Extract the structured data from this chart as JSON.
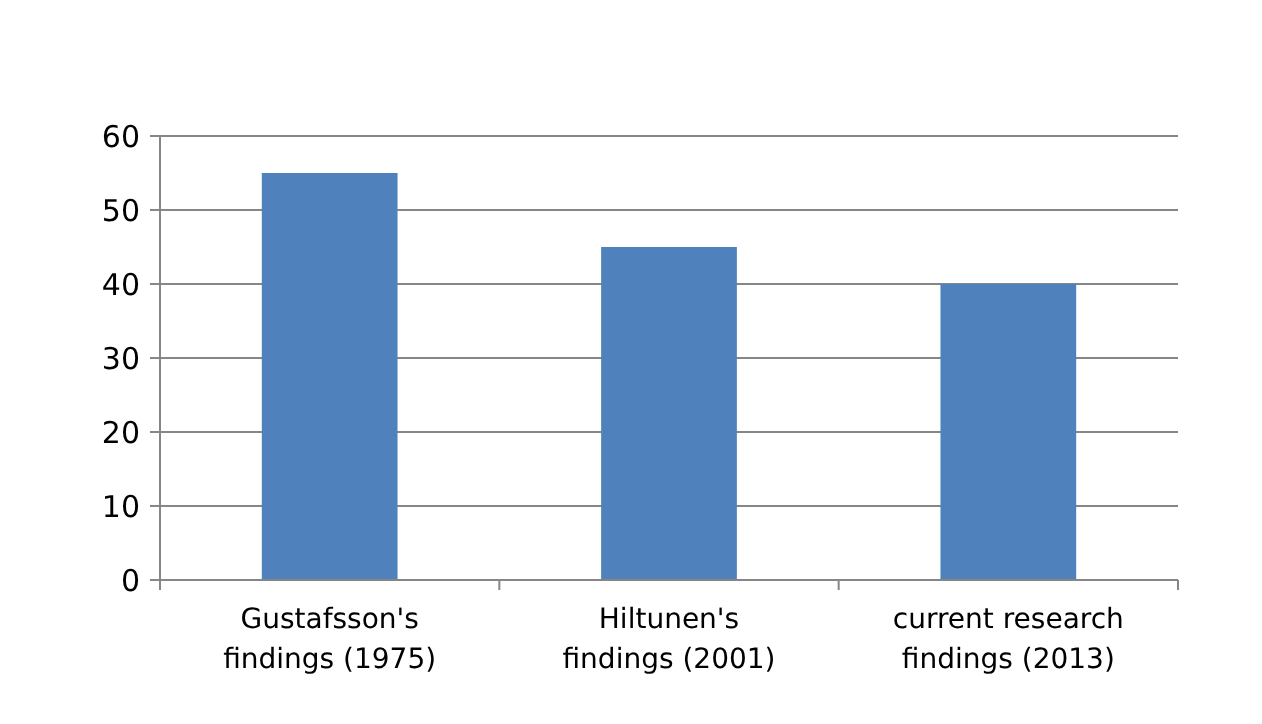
{
  "chart_data": {
    "type": "bar",
    "categories": [
      "Gustafsson's findings (1975)",
      "Hiltunen's findings (2001)",
      "current research findings (2013)"
    ],
    "values": [
      55,
      45,
      40
    ],
    "color": "#4f81bd",
    "ylim": [
      0,
      60
    ],
    "yticks": [
      0,
      10,
      20,
      30,
      40,
      50,
      60
    ],
    "grid": "y"
  }
}
